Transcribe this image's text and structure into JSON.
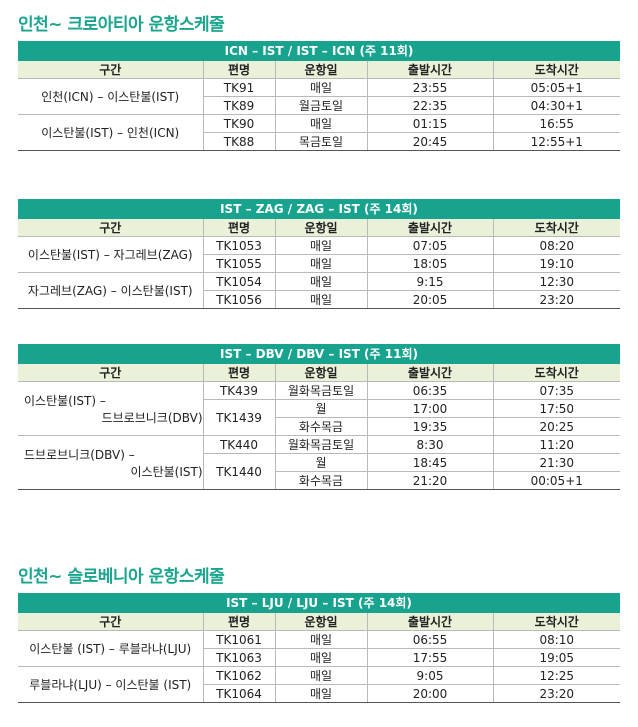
{
  "title1": "인천~ 크로아티아 운항스케줄",
  "title2": "인천~ 슬로베니아 운항스케줄",
  "headers": {
    "route": "구간",
    "flight": "편명",
    "days": "운항일",
    "dep": "출발시간",
    "arr": "도착시간"
  },
  "t1": {
    "banner": "ICN – IST / IST – ICN (주 11회)",
    "route_a": "인천(ICN) – 이스탄불(IST)",
    "route_b": "이스탄불(IST) – 인천(ICN)",
    "rows": [
      {
        "flight": "TK91",
        "days": "매일",
        "dep": "23:55",
        "arr": "05:05+1"
      },
      {
        "flight": "TK89",
        "days": "월금토일",
        "dep": "22:35",
        "arr": "04:30+1"
      },
      {
        "flight": "TK90",
        "days": "매일",
        "dep": "01:15",
        "arr": "16:55"
      },
      {
        "flight": "TK88",
        "days": "목금토일",
        "dep": "20:45",
        "arr": "12:55+1"
      }
    ]
  },
  "t2": {
    "banner": "IST – ZAG / ZAG – IST (주 14회)",
    "route_a": "이스탄불(IST) – 자그레브(ZAG)",
    "route_b": "자그레브(ZAG) – 이스탄불(IST)",
    "rows": [
      {
        "flight": "TK1053",
        "days": "매일",
        "dep": "07:05",
        "arr": "08:20"
      },
      {
        "flight": "TK1055",
        "days": "매일",
        "dep": "18:05",
        "arr": "19:10"
      },
      {
        "flight": "TK1054",
        "days": "매일",
        "dep": "9:15",
        "arr": "12:30"
      },
      {
        "flight": "TK1056",
        "days": "매일",
        "dep": "20:05",
        "arr": "23:20"
      }
    ]
  },
  "t3": {
    "banner": "IST – DBV / DBV – IST (주 11회)",
    "route_a1": "이스탄불(IST) –",
    "route_a2": "드브로브니크(DBV)",
    "route_b1": "드브로브니크(DBV) –",
    "route_b2": "이스탄불(IST)",
    "rows": [
      {
        "flight": "TK439",
        "days": "월화목금토일",
        "dep": "06:35",
        "arr": "07:35"
      },
      {
        "flight": "TK1439",
        "days": "월",
        "dep": "17:00",
        "arr": "17:50"
      },
      {
        "days": "화수목금",
        "dep": "19:35",
        "arr": "20:25"
      },
      {
        "flight": "TK440",
        "days": "월화목금토일",
        "dep": "8:30",
        "arr": "11:20"
      },
      {
        "flight": "TK1440",
        "days": "월",
        "dep": "18:45",
        "arr": "21:30"
      },
      {
        "days": "화수목금",
        "dep": "21:20",
        "arr": "00:05+1"
      }
    ]
  },
  "t4": {
    "banner": "IST – LJU / LJU – IST (주 14회)",
    "route_a": "이스탄불 (IST) – 루블라냐(LJU)",
    "route_b": "루블라냐(LJU) – 이스탄불 (IST)",
    "rows": [
      {
        "flight": "TK1061",
        "days": "매일",
        "dep": "06:55",
        "arr": "08:10"
      },
      {
        "flight": "TK1063",
        "days": "매일",
        "dep": "17:55",
        "arr": "19:05"
      },
      {
        "flight": "TK1062",
        "days": "매일",
        "dep": "9:05",
        "arr": "12:25"
      },
      {
        "flight": "TK1064",
        "days": "매일",
        "dep": "20:00",
        "arr": "23:20"
      }
    ]
  }
}
